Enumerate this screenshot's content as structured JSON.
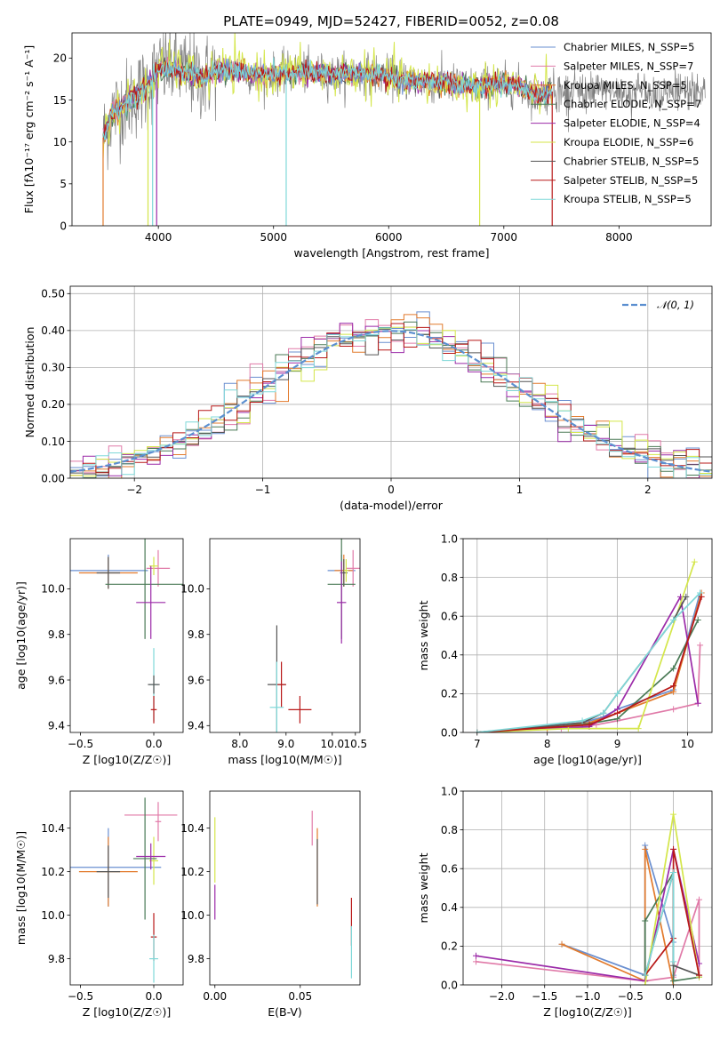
{
  "colors": [
    "#6a8fd0",
    "#e07aa8",
    "#e27a2c",
    "#4a7a56",
    "#9b2aa8",
    "#d4e64a",
    "#555555",
    "#b81818",
    "#7fd8d8"
  ],
  "chart_data": [
    {
      "type": "line",
      "title": "PLATE=0949, MJD=52427, FIBERID=0052, z=0.08",
      "xlabel": "wavelength [Angstrom, rest frame]",
      "ylabel": "Flux [fλ10⁻¹⁷ erg cm⁻² s⁻¹ A⁻¹]",
      "xlim": [
        3250,
        8800
      ],
      "ylim": [
        0,
        23
      ],
      "xticks": [
        4000,
        5000,
        6000,
        7000,
        8000
      ],
      "yticks": [
        0,
        5,
        10,
        15,
        20
      ],
      "grid": false,
      "legend": "top-right",
      "series": [
        {
          "name": "Chabrier MILES, N_SSP=5"
        },
        {
          "name": "Salpeter MILES, N_SSP=7"
        },
        {
          "name": "Kroupa MILES, N_SSP=5"
        },
        {
          "name": "Chabrier ELODIE, N_SSP=7"
        },
        {
          "name": "Salpeter ELODIE, N_SSP=4"
        },
        {
          "name": "Kroupa ELODIE, N_SSP=6"
        },
        {
          "name": "Chabrier STELIB, N_SSP=5"
        },
        {
          "name": "Salpeter STELIB, N_SSP=5"
        },
        {
          "name": "Kroupa STELIB, N_SSP=5"
        }
      ],
      "shape_x": [
        3520,
        3600,
        3700,
        3800,
        3900,
        4000,
        4100,
        4200,
        4300,
        4400,
        4500,
        4700,
        4900,
        5100,
        5300,
        5500,
        5700,
        5900,
        6100,
        6300,
        6500,
        6700,
        6900,
        7100,
        7300,
        7400
      ],
      "shape_y": [
        10.5,
        13.5,
        14.5,
        15.5,
        16.5,
        18.5,
        19.0,
        18.5,
        18.0,
        17.5,
        18.5,
        18.5,
        18.0,
        18.2,
        18.3,
        18.0,
        18.2,
        18.0,
        17.5,
        17.2,
        17.0,
        16.5,
        17.0,
        16.8,
        15.5,
        16.0
      ]
    },
    {
      "type": "step",
      "xlabel": "(data-model)/error",
      "ylabel": "Normed distribution",
      "xlim": [
        -2.5,
        2.5
      ],
      "ylim": [
        0,
        0.52
      ],
      "xticks": [
        -2,
        -1,
        0,
        1,
        2
      ],
      "yticks": [
        0.0,
        0.1,
        0.2,
        0.3,
        0.4,
        0.5
      ],
      "grid": true,
      "legend": "top-right",
      "legend_label": "𝒩(0, 1)",
      "reference_curve": "normal(0,1)"
    },
    {
      "type": "errorbar",
      "xlabel": "Z [log10(Z/Z☉)]",
      "ylabel": "age  [log10(age/yr)]",
      "xlim": [
        -0.57,
        0.2
      ],
      "ylim": [
        9.37,
        10.22
      ],
      "xticks": [
        -0.5,
        0.0
      ],
      "yticks": [
        9.4,
        9.6,
        9.8,
        10.0
      ],
      "points": [
        {
          "x": -0.31,
          "y": 10.08,
          "xerr": 0.27,
          "yerr": 0.07,
          "c": 0
        },
        {
          "x": -0.31,
          "y": 10.07,
          "xerr": 0.2,
          "yerr": 0.07,
          "c": 2
        },
        {
          "x": -0.31,
          "y": 10.07,
          "xerr": 0.08,
          "yerr": 0.07,
          "c": 6
        },
        {
          "x": 0.03,
          "y": 10.09,
          "xerr": 0.08,
          "yerr": 0.08,
          "c": 1
        },
        {
          "x": 0.0,
          "y": 10.1,
          "xerr": 0.03,
          "yerr": 0.04,
          "c": 5
        },
        {
          "x": -0.06,
          "y": 10.02,
          "xerr": 0.27,
          "yerr": 0.24,
          "c": 3
        },
        {
          "x": -0.02,
          "y": 9.94,
          "xerr": 0.1,
          "yerr": 0.16,
          "c": 4
        },
        {
          "x": 0.0,
          "y": 9.58,
          "xerr": 0.03,
          "yerr": 0.16,
          "c": 8
        },
        {
          "x": 0.0,
          "y": 9.58,
          "xerr": 0.04,
          "yerr": 0.04,
          "c": 6
        },
        {
          "x": 0.0,
          "y": 9.47,
          "xerr": 0.02,
          "yerr": 0.06,
          "c": 7
        }
      ]
    },
    {
      "type": "errorbar",
      "xlabel": "mass [log10(M/M☉)]",
      "ylabel": "",
      "xlim": [
        7.35,
        10.6
      ],
      "ylim": [
        9.37,
        10.22
      ],
      "xticks": [
        8.0,
        9.0,
        10.0,
        10.5
      ],
      "yticks": [
        9.4,
        9.6,
        9.8,
        10.0
      ],
      "points": [
        {
          "x": 10.2,
          "y": 10.08,
          "xerr": 0.3,
          "yerr": 0.07,
          "c": 0
        },
        {
          "x": 10.25,
          "y": 10.08,
          "xerr": 0.2,
          "yerr": 0.07,
          "c": 2
        },
        {
          "x": 10.25,
          "y": 10.07,
          "xerr": 0.08,
          "yerr": 0.06,
          "c": 6
        },
        {
          "x": 10.45,
          "y": 10.09,
          "xerr": 0.15,
          "yerr": 0.08,
          "c": 1
        },
        {
          "x": 10.3,
          "y": 10.08,
          "xerr": 0.05,
          "yerr": 0.05,
          "c": 5
        },
        {
          "x": 10.2,
          "y": 10.02,
          "xerr": 0.3,
          "yerr": 0.24,
          "c": 3
        },
        {
          "x": 10.2,
          "y": 9.94,
          "xerr": 0.1,
          "yerr": 0.18,
          "c": 4
        },
        {
          "x": 8.8,
          "y": 9.58,
          "xerr": 0.2,
          "yerr": 0.26,
          "c": 6
        },
        {
          "x": 8.9,
          "y": 9.58,
          "xerr": 0.1,
          "yerr": 0.1,
          "c": 7
        },
        {
          "x": 8.8,
          "y": 9.48,
          "xerr": 0.15,
          "yerr": 0.2,
          "c": 8
        },
        {
          "x": 9.3,
          "y": 9.47,
          "xerr": 0.25,
          "yerr": 0.06,
          "c": 7
        }
      ]
    },
    {
      "type": "line",
      "xlabel": "age  [log10(age/yr)]",
      "ylabel": "mass weight",
      "xlim": [
        6.8,
        10.35
      ],
      "ylim": [
        0,
        1.0
      ],
      "xticks": [
        7,
        8,
        9,
        10
      ],
      "yticks": [
        0.0,
        0.2,
        0.4,
        0.6,
        0.8,
        1.0
      ],
      "grid": true,
      "series": [
        {
          "c": 0,
          "x": [
            7.0,
            8.5,
            8.8,
            9.0,
            9.8,
            10.18
          ],
          "y": [
            0.0,
            0.05,
            0.08,
            0.12,
            0.22,
            0.72
          ]
        },
        {
          "c": 1,
          "x": [
            7.0,
            8.2,
            8.7,
            9.0,
            9.8,
            10.15,
            10.18
          ],
          "y": [
            0.0,
            0.02,
            0.04,
            0.06,
            0.12,
            0.15,
            0.45
          ]
        },
        {
          "c": 2,
          "x": [
            7.0,
            8.0,
            8.6,
            9.0,
            9.8,
            10.2
          ],
          "y": [
            0.0,
            0.02,
            0.05,
            0.1,
            0.21,
            0.72
          ]
        },
        {
          "c": 3,
          "x": [
            7.0,
            8.5,
            9.0,
            9.8,
            10.15
          ],
          "y": [
            0.0,
            0.04,
            0.07,
            0.33,
            0.58
          ]
        },
        {
          "c": 4,
          "x": [
            7.0,
            8.6,
            9.0,
            9.9,
            10.15
          ],
          "y": [
            0.0,
            0.03,
            0.12,
            0.7,
            0.15
          ]
        },
        {
          "c": 5,
          "x": [
            7.0,
            8.3,
            9.3,
            10.1
          ],
          "y": [
            0.0,
            0.02,
            0.02,
            0.88
          ]
        },
        {
          "c": 6,
          "x": [
            7.0,
            8.5,
            8.8,
            9.0,
            9.8,
            9.98
          ],
          "y": [
            0.0,
            0.05,
            0.1,
            0.2,
            0.58,
            0.7
          ]
        },
        {
          "c": 7,
          "x": [
            7.0,
            8.6,
            9.0,
            9.8,
            10.2
          ],
          "y": [
            0.0,
            0.04,
            0.1,
            0.24,
            0.7
          ]
        },
        {
          "c": 8,
          "x": [
            7.0,
            8.5,
            8.8,
            9.0,
            9.8,
            10.18
          ],
          "y": [
            0.0,
            0.06,
            0.1,
            0.2,
            0.58,
            0.72
          ]
        }
      ]
    },
    {
      "type": "errorbar",
      "xlabel": "Z [log10(Z/Z☉)]",
      "ylabel": "mass [log10(M/M☉)]",
      "xlim": [
        -0.57,
        0.2
      ],
      "ylim": [
        9.68,
        10.57
      ],
      "xticks": [
        -0.5,
        0.0
      ],
      "yticks": [
        9.8,
        10.0,
        10.2,
        10.4
      ],
      "points": [
        {
          "x": -0.31,
          "y": 10.22,
          "xerr": 0.36,
          "yerr": 0.18,
          "c": 0
        },
        {
          "x": -0.31,
          "y": 10.2,
          "xerr": 0.2,
          "yerr": 0.16,
          "c": 2
        },
        {
          "x": -0.31,
          "y": 10.2,
          "xerr": 0.08,
          "yerr": 0.12,
          "c": 6
        },
        {
          "x": -0.02,
          "y": 10.46,
          "xerr": 0.18,
          "yerr": 0.0,
          "c": 1
        },
        {
          "x": 0.03,
          "y": 10.43,
          "xerr": 0.02,
          "yerr": 0.09,
          "c": 1
        },
        {
          "x": 0.0,
          "y": 10.25,
          "xerr": 0.03,
          "yerr": 0.11,
          "c": 5
        },
        {
          "x": -0.06,
          "y": 10.26,
          "xerr": 0.08,
          "yerr": 0.28,
          "c": 3
        },
        {
          "x": -0.02,
          "y": 10.27,
          "xerr": 0.1,
          "yerr": 0.06,
          "c": 4
        },
        {
          "x": 0.0,
          "y": 9.9,
          "xerr": 0.02,
          "yerr": 0.11,
          "c": 7
        },
        {
          "x": 0.0,
          "y": 9.8,
          "xerr": 0.03,
          "yerr": 0.11,
          "c": 8
        }
      ]
    },
    {
      "type": "errorbar",
      "xlabel": "E(B-V)",
      "ylabel": "",
      "xlim": [
        -0.003,
        0.085
      ],
      "ylim": [
        9.68,
        10.57
      ],
      "xticks": [
        0.0,
        0.05
      ],
      "yticks": [
        9.8,
        10.0,
        10.2,
        10.4
      ],
      "points": [
        {
          "x": 0.0,
          "y": 10.3,
          "xerr": 0.0,
          "yerr": 0.15,
          "c": 5
        },
        {
          "x": 0.0,
          "y": 10.06,
          "xerr": 0.0,
          "yerr": 0.08,
          "c": 4
        },
        {
          "x": 0.057,
          "y": 10.4,
          "xerr": 0.0,
          "yerr": 0.08,
          "c": 1
        },
        {
          "x": 0.06,
          "y": 10.22,
          "xerr": 0.0,
          "yerr": 0.18,
          "c": 2
        },
        {
          "x": 0.06,
          "y": 10.2,
          "xerr": 0.0,
          "yerr": 0.15,
          "c": 6
        },
        {
          "x": 0.08,
          "y": 9.97,
          "xerr": 0.0,
          "yerr": 0.11,
          "c": 7
        },
        {
          "x": 0.08,
          "y": 9.83,
          "xerr": 0.0,
          "yerr": 0.12,
          "c": 8
        }
      ]
    },
    {
      "type": "line",
      "xlabel": "Z [log10(Z/Z☉)]",
      "ylabel": "mass weight",
      "xlim": [
        -2.45,
        0.45
      ],
      "ylim": [
        0,
        1.0
      ],
      "xticks": [
        -2.0,
        -1.5,
        -1.0,
        -0.5,
        0.0
      ],
      "yticks": [
        0.0,
        0.2,
        0.4,
        0.6,
        0.8,
        1.0
      ],
      "grid": true,
      "series": [
        {
          "c": 0,
          "x": [
            -1.3,
            -0.33,
            -0.33,
            0.0,
            0.0
          ],
          "y": [
            0.21,
            0.05,
            0.72,
            0.22,
            0.05
          ]
        },
        {
          "c": 1,
          "x": [
            -2.3,
            -0.33,
            0.0,
            0.3,
            0.3
          ],
          "y": [
            0.12,
            0.02,
            0.04,
            0.44,
            0.05
          ]
        },
        {
          "c": 2,
          "x": [
            -1.3,
            -0.33,
            -0.33,
            0.0
          ],
          "y": [
            0.21,
            0.02,
            0.7,
            0.0
          ]
        },
        {
          "c": 3,
          "x": [
            -0.33,
            -0.33,
            0.0,
            0.0,
            0.3
          ],
          "y": [
            0.05,
            0.33,
            0.58,
            0.02,
            0.04
          ]
        },
        {
          "c": 4,
          "x": [
            -2.3,
            -0.33,
            0.0,
            0.3
          ],
          "y": [
            0.15,
            0.02,
            0.7,
            0.11
          ]
        },
        {
          "c": 5,
          "x": [
            -0.33,
            0.0,
            0.3
          ],
          "y": [
            0.0,
            0.88,
            0.04
          ]
        },
        {
          "c": 6,
          "x": [
            -0.33,
            0.0,
            0.0,
            0.3
          ],
          "y": [
            0.05,
            0.58,
            0.1,
            0.05
          ]
        },
        {
          "c": 7,
          "x": [
            -0.33,
            0.0,
            0.0,
            0.3
          ],
          "y": [
            0.05,
            0.24,
            0.7,
            0.05
          ]
        },
        {
          "c": 8,
          "x": [
            -0.33,
            0.0,
            0.0
          ],
          "y": [
            0.05,
            0.58,
            0.12
          ]
        }
      ]
    }
  ]
}
